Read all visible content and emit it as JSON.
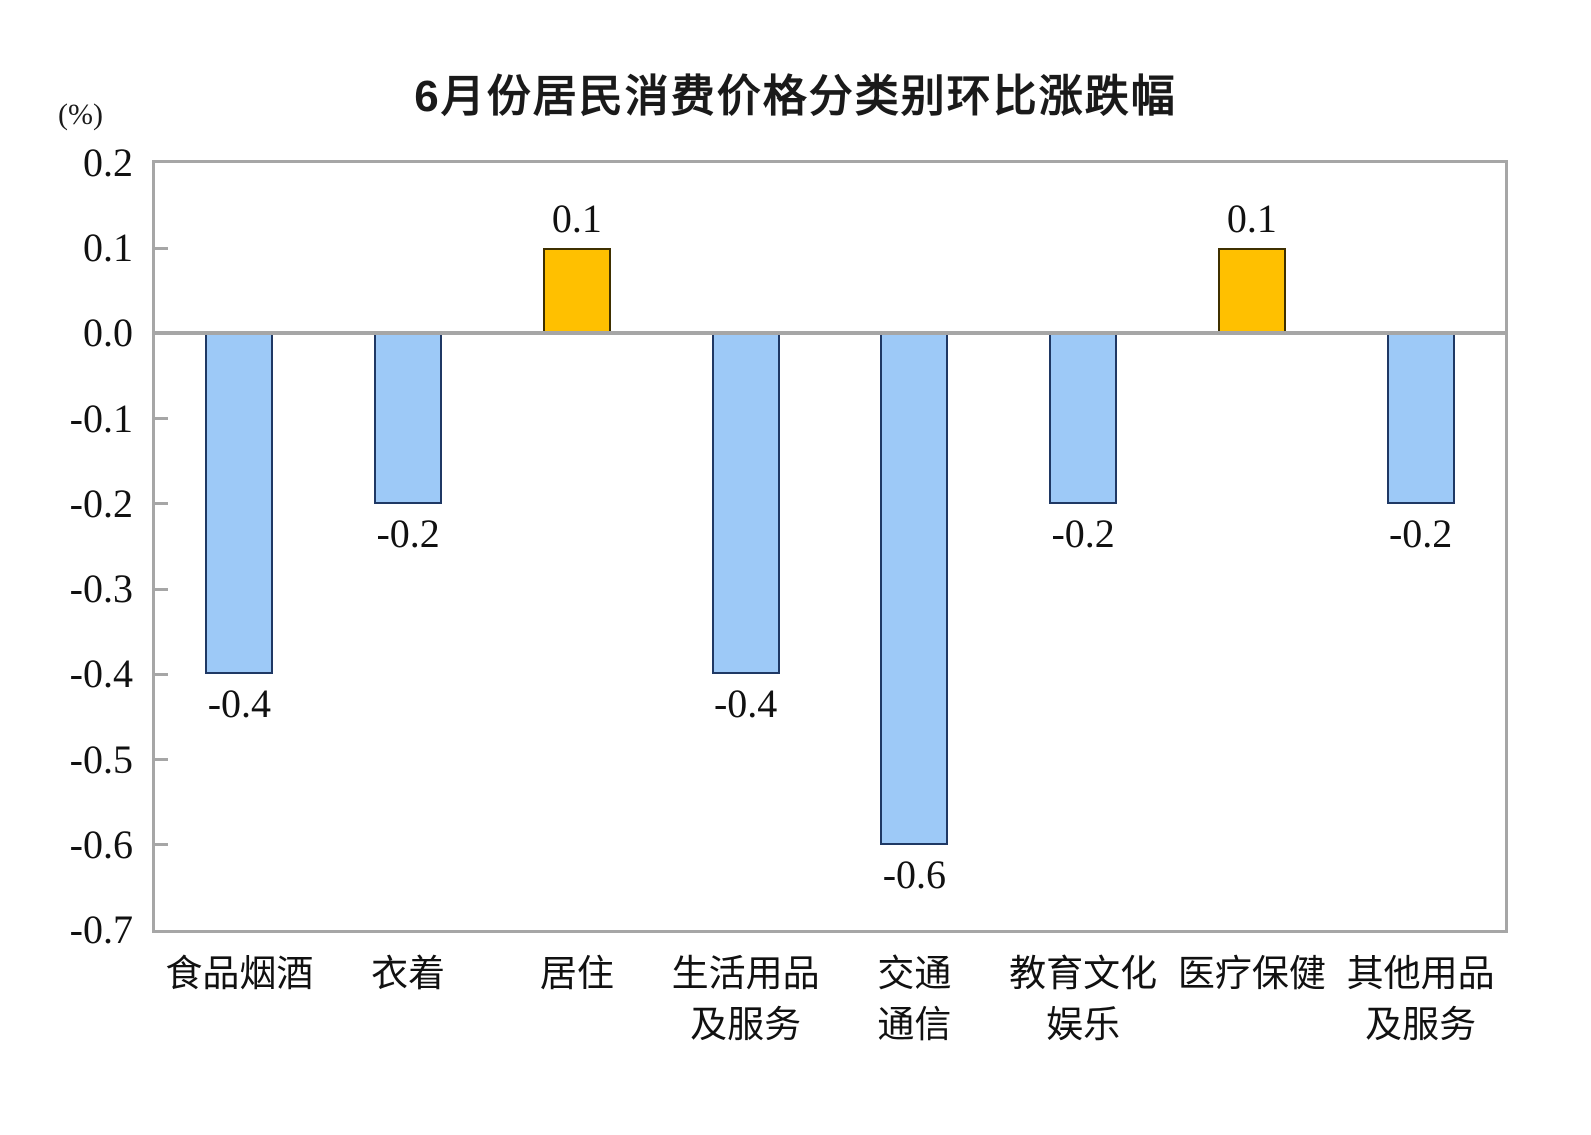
{
  "chart_data": {
    "type": "bar",
    "title": "6月份居民消费价格分类别环比涨跌幅",
    "unit_label": "(%)",
    "categories": [
      "食品烟酒",
      "衣着",
      "居住",
      "生活用品\n及服务",
      "交通\n通信",
      "教育文化\n娱乐",
      "医疗保健",
      "其他用品\n及服务"
    ],
    "values": [
      -0.4,
      -0.2,
      0.1,
      -0.4,
      -0.6,
      -0.2,
      0.1,
      -0.2
    ],
    "data_labels": [
      "-0.4",
      "-0.2",
      "0.1",
      "-0.4",
      "-0.6",
      "-0.2",
      "0.1",
      "-0.2"
    ],
    "xlabel": "",
    "ylabel": "(%)",
    "ylim": [
      -0.7,
      0.2
    ],
    "y_ticks": [
      0.2,
      0.1,
      0.0,
      -0.1,
      -0.2,
      -0.3,
      -0.4,
      -0.5,
      -0.6,
      -0.7
    ],
    "y_tick_labels": [
      "0.2",
      "0.1",
      "0.0",
      "-0.1",
      "-0.2",
      "-0.3",
      "-0.4",
      "-0.5",
      "-0.6",
      "-0.7"
    ],
    "grid": false,
    "legend": false,
    "colors": {
      "positive_fill": "#FFC000",
      "positive_border": "#3f3000",
      "negative_fill": "#9DC9F7",
      "negative_border": "#1F3864",
      "axis": "#A6A6A6",
      "text": "#111111"
    }
  }
}
